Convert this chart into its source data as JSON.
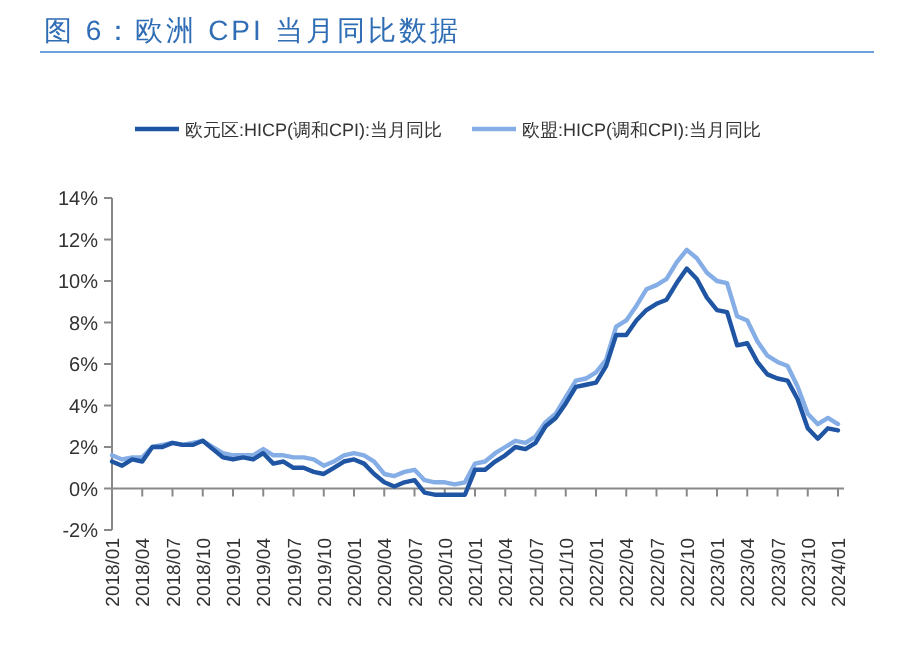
{
  "chart_data": {
    "type": "line",
    "title": "图 6：欧洲 CPI 当月同比数据",
    "categories": [
      "2018/01",
      null,
      null,
      "2018/04",
      null,
      null,
      "2018/07",
      null,
      null,
      "2018/10",
      null,
      null,
      "2019/01",
      null,
      null,
      "2019/04",
      null,
      null,
      "2019/07",
      null,
      null,
      "2019/10",
      null,
      null,
      "2020/01",
      null,
      null,
      "2020/04",
      null,
      null,
      "2020/07",
      null,
      null,
      "2020/10",
      null,
      null,
      "2021/01",
      null,
      null,
      "2021/04",
      null,
      null,
      "2021/07",
      null,
      null,
      "2021/10",
      null,
      null,
      "2022/01",
      null,
      null,
      "2022/04",
      null,
      null,
      "2022/07",
      null,
      null,
      "2022/10",
      null,
      null,
      "2023/01",
      null,
      null,
      "2023/04",
      null,
      null,
      "2023/07",
      null,
      null,
      "2023/10",
      null,
      null,
      "2024/01"
    ],
    "series": [
      {
        "name": "欧元区:HICP(调和CPI):当月同比",
        "color": "#1f55a3",
        "values": [
          1.3,
          1.1,
          1.4,
          1.3,
          2.0,
          2.0,
          2.2,
          2.1,
          2.1,
          2.3,
          1.9,
          1.5,
          1.4,
          1.5,
          1.4,
          1.7,
          1.2,
          1.3,
          1.0,
          1.0,
          0.8,
          0.7,
          1.0,
          1.3,
          1.4,
          1.2,
          0.7,
          0.3,
          0.1,
          0.3,
          0.4,
          -0.2,
          -0.3,
          -0.3,
          -0.3,
          -0.3,
          0.9,
          0.9,
          1.3,
          1.6,
          2.0,
          1.9,
          2.2,
          3.0,
          3.4,
          4.1,
          4.9,
          5.0,
          5.1,
          5.9,
          7.4,
          7.4,
          8.1,
          8.6,
          8.9,
          9.1,
          9.9,
          10.6,
          10.1,
          9.2,
          8.6,
          8.5,
          6.9,
          7.0,
          6.1,
          5.5,
          5.3,
          5.2,
          4.3,
          2.9,
          2.4,
          2.9,
          2.8
        ]
      },
      {
        "name": "欧盟:HICP(调和CPI):当月同比",
        "color": "#86aee6",
        "values": [
          1.6,
          1.4,
          1.5,
          1.5,
          2.0,
          2.1,
          2.2,
          2.1,
          2.2,
          2.3,
          2.0,
          1.7,
          1.6,
          1.6,
          1.6,
          1.9,
          1.6,
          1.6,
          1.5,
          1.5,
          1.4,
          1.1,
          1.3,
          1.6,
          1.7,
          1.6,
          1.3,
          0.7,
          0.6,
          0.8,
          0.9,
          0.4,
          0.3,
          0.3,
          0.2,
          0.3,
          1.2,
          1.3,
          1.7,
          2.0,
          2.3,
          2.2,
          2.5,
          3.2,
          3.6,
          4.4,
          5.2,
          5.3,
          5.6,
          6.2,
          7.8,
          8.1,
          8.8,
          9.6,
          9.8,
          10.1,
          10.9,
          11.5,
          11.1,
          10.4,
          10.0,
          9.9,
          8.3,
          8.1,
          7.1,
          6.4,
          6.1,
          5.9,
          4.9,
          3.6,
          3.1,
          3.4,
          3.1
        ]
      }
    ],
    "ylim": [
      -2,
      14
    ],
    "yticks": [
      {
        "value": -2,
        "label": "-2%"
      },
      {
        "value": 0,
        "label": "0%"
      },
      {
        "value": 2,
        "label": "2%"
      },
      {
        "value": 4,
        "label": "4%"
      },
      {
        "value": 6,
        "label": "6%"
      },
      {
        "value": 8,
        "label": "8%"
      },
      {
        "value": 10,
        "label": "10%"
      },
      {
        "value": 12,
        "label": "12%"
      },
      {
        "value": 14,
        "label": "14%"
      }
    ],
    "legend": "top",
    "marker": "none",
    "line_style": "solid"
  }
}
